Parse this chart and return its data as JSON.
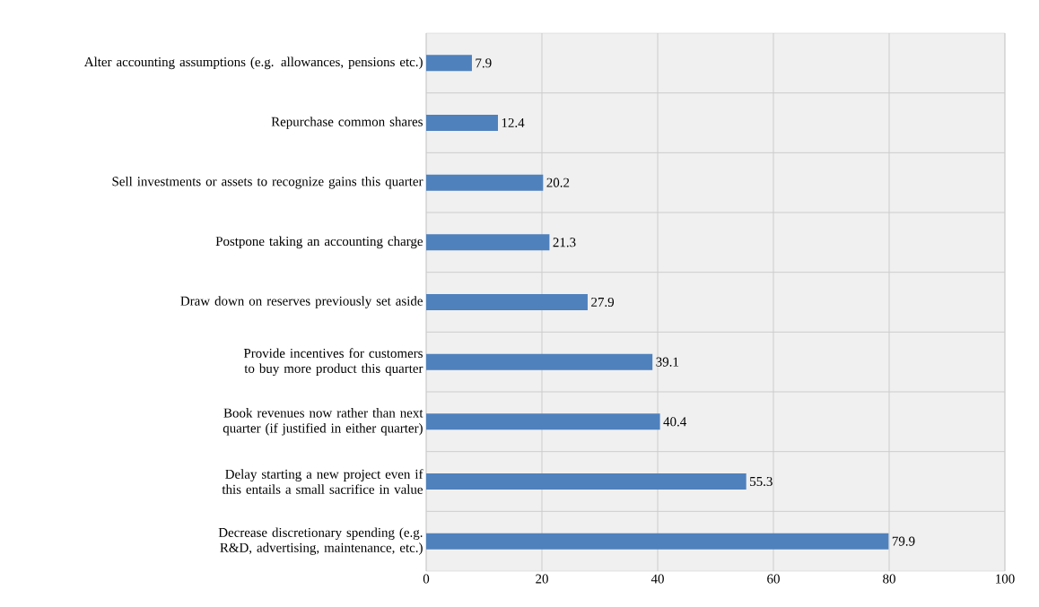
{
  "chart_data": {
    "type": "bar",
    "orientation": "horizontal",
    "categories": [
      "Alter accounting assumptions (e.g. allowances, pensions etc.)",
      "Repurchase common shares",
      "Sell investments or assets to recognize gains this quarter",
      "Postpone taking an accounting charge",
      "Draw down on reserves previously set aside",
      "Provide incentives for customers to buy more product this quarter",
      "Book revenues now rather than next quarter (if justified in either quarter)",
      "Delay starting a new project even if this entails a small sacrifice in value",
      "Decrease discretionary spending (e.g. R&D, advertising, maintenance, etc.)"
    ],
    "values": [
      7.9,
      12.4,
      20.2,
      21.3,
      27.9,
      39.1,
      40.4,
      55.3,
      79.9
    ],
    "color": "#4f81bd",
    "data_labels": true,
    "grid": "x",
    "xlim": [
      0,
      100
    ],
    "xticks": [
      0,
      20,
      40,
      60,
      80,
      100
    ]
  }
}
